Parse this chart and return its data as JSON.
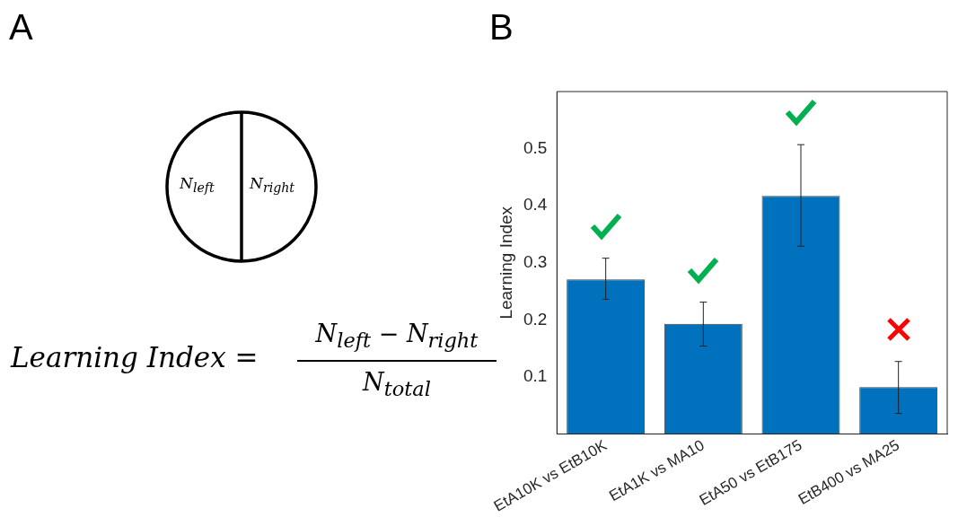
{
  "chart_data": [
    {
      "type": "other",
      "title": "A",
      "annotations": [
        "N$_{left}$",
        "N$_{right}$",
        "Learning Index =",
        "N$_{left}$ − N$_{right}$",
        "N$_{total}$"
      ]
    },
    {
      "type": "bar",
      "title": "B",
      "ylabel": "Learning Index",
      "categories": [
        "EtA10K vs EtB10K",
        "EtA1K vs MA10",
        "EtA50 vs EtB175",
        "EtB400 vs MA25"
      ],
      "values": [
        0.271,
        0.193,
        0.417,
        0.082
      ],
      "color": "#0072bd",
      "errors": [
        [
          0.236,
          0.308
        ],
        [
          0.154,
          0.231
        ],
        [
          0.329,
          0.507
        ],
        [
          0.036,
          0.127
        ]
      ],
      "ylim": [
        0,
        0.6
      ],
      "yticks": [
        0.1,
        0.2,
        0.3,
        0.4,
        0.5
      ],
      "grid": false,
      "legend": false
    }
  ]
}
